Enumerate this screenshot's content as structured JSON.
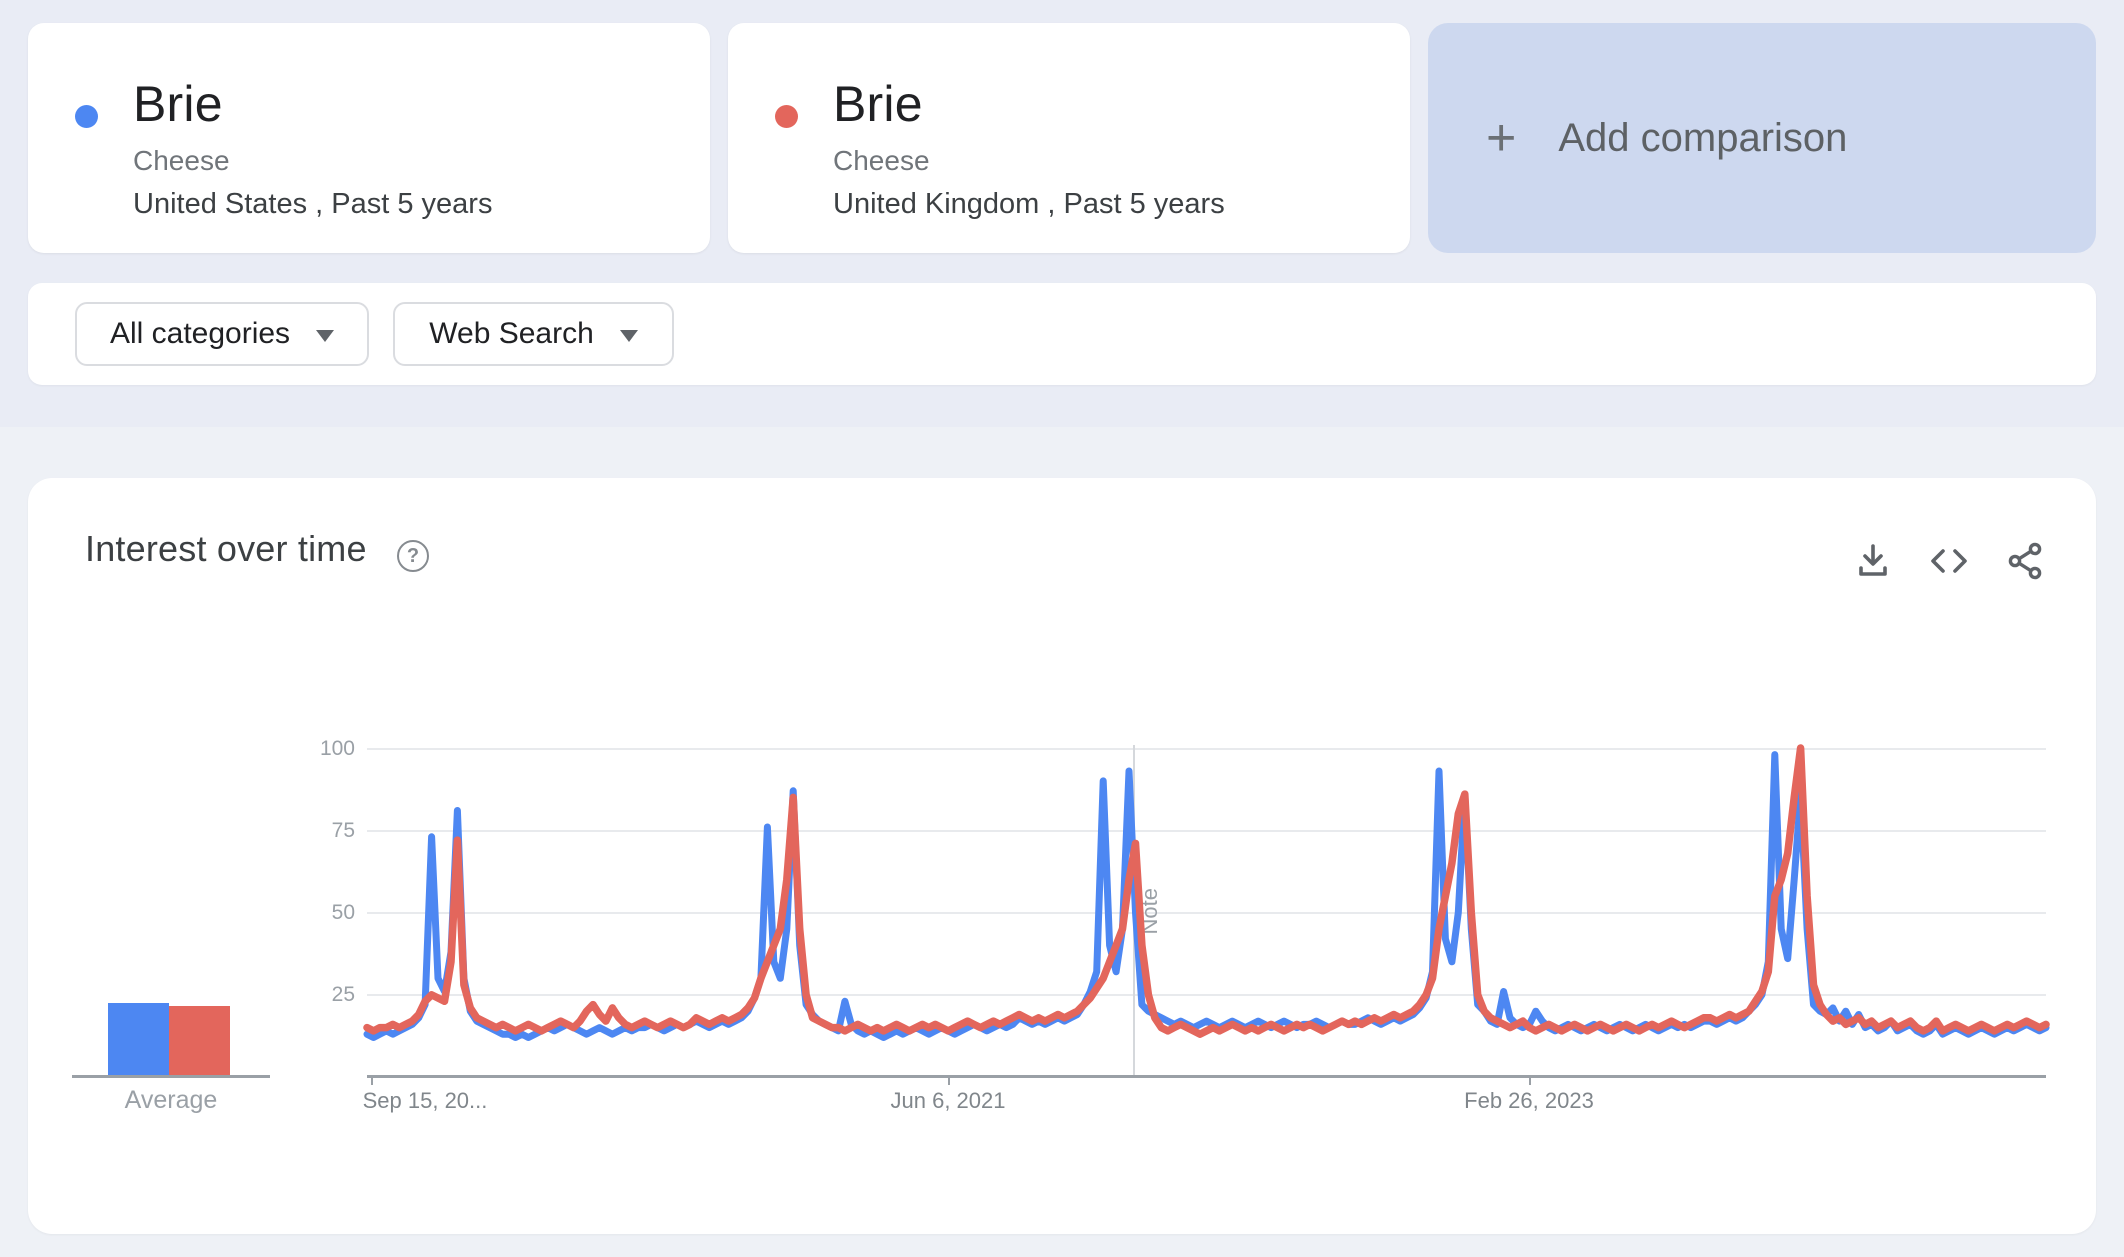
{
  "page": {
    "bg_top": "#e9ecf5",
    "bg_bottom": "#eef1f6"
  },
  "comparison_cards": [
    {
      "term": "Brie",
      "topic": "Cheese",
      "scope": "United States , Past 5 years",
      "color": "#4d87f2"
    },
    {
      "term": "Brie",
      "topic": "Cheese",
      "scope": "United Kingdom , Past 5 years",
      "color": "#e3665c"
    }
  ],
  "add_comparison": {
    "plus": "+",
    "label": "Add comparison"
  },
  "filters": {
    "category": {
      "label": "All categories"
    },
    "search_type": {
      "label": "Web Search"
    }
  },
  "panel": {
    "title": "Interest over time",
    "help": "?",
    "icons": [
      "download-icon",
      "embed-icon",
      "share-icon"
    ]
  },
  "average": {
    "label": "Average",
    "values": [
      22,
      21
    ]
  },
  "chart_data": {
    "type": "line",
    "title": "Interest over time",
    "xlabel": "",
    "ylabel": "",
    "ylim": [
      0,
      100
    ],
    "yticks": [
      25,
      50,
      75,
      100
    ],
    "grid": true,
    "legend_position": "none",
    "x_axis": {
      "points": 261,
      "unit": "week",
      "start_label": "Sep 15, 20...",
      "mid_label": "Jun 6, 2021",
      "end_label": "Feb 26, 2023",
      "note_label": "Note",
      "note_index": 119
    },
    "series": [
      {
        "name": "Brie (United States)",
        "color": "#4d87f2",
        "average": 22,
        "values": [
          13,
          12,
          13,
          14,
          13,
          14,
          15,
          16,
          18,
          22,
          73,
          30,
          26,
          38,
          81,
          30,
          20,
          17,
          16,
          15,
          14,
          13,
          13,
          12,
          13,
          12,
          13,
          14,
          15,
          14,
          15,
          16,
          15,
          14,
          13,
          14,
          15,
          14,
          13,
          14,
          15,
          14,
          15,
          15,
          16,
          15,
          14,
          15,
          16,
          15,
          16,
          17,
          16,
          15,
          16,
          17,
          16,
          17,
          18,
          20,
          24,
          30,
          76,
          35,
          30,
          45,
          87,
          40,
          22,
          19,
          17,
          16,
          15,
          14,
          23,
          16,
          14,
          13,
          14,
          13,
          12,
          13,
          14,
          13,
          14,
          15,
          14,
          13,
          14,
          15,
          14,
          13,
          14,
          15,
          16,
          15,
          14,
          15,
          16,
          15,
          16,
          18,
          17,
          16,
          17,
          16,
          17,
          18,
          17,
          18,
          19,
          22,
          26,
          32,
          90,
          40,
          32,
          45,
          93,
          50,
          22,
          20,
          19,
          18,
          17,
          16,
          17,
          16,
          15,
          16,
          17,
          16,
          15,
          16,
          17,
          16,
          15,
          16,
          17,
          16,
          15,
          16,
          17,
          16,
          15,
          16,
          16,
          17,
          16,
          15,
          16,
          17,
          16,
          16,
          17,
          18,
          17,
          16,
          17,
          18,
          17,
          18,
          19,
          21,
          24,
          32,
          93,
          42,
          35,
          50,
          86,
          45,
          22,
          20,
          17,
          16,
          26,
          18,
          16,
          15,
          16,
          20,
          17,
          15,
          14,
          15,
          16,
          15,
          14,
          15,
          16,
          15,
          14,
          15,
          16,
          15,
          14,
          15,
          16,
          15,
          14,
          15,
          16,
          15,
          16,
          15,
          16,
          17,
          17,
          16,
          17,
          18,
          17,
          18,
          20,
          22,
          25,
          35,
          98,
          45,
          36,
          60,
          86,
          45,
          22,
          20,
          19,
          21,
          17,
          20,
          16,
          19,
          15,
          16,
          14,
          15,
          17,
          14,
          15,
          16,
          14,
          13,
          14,
          16,
          13,
          14,
          15,
          14,
          13,
          14,
          15,
          14,
          13,
          14,
          15,
          14,
          15,
          16,
          15,
          14,
          15
        ]
      },
      {
        "name": "Brie (United Kingdom)",
        "color": "#e3665c",
        "average": 21,
        "values": [
          15,
          14,
          15,
          15,
          16,
          15,
          16,
          17,
          19,
          23,
          25,
          24,
          23,
          35,
          72,
          28,
          21,
          18,
          17,
          16,
          15,
          16,
          15,
          14,
          15,
          16,
          15,
          14,
          15,
          16,
          17,
          16,
          15,
          17,
          20,
          22,
          19,
          17,
          21,
          18,
          16,
          15,
          16,
          17,
          16,
          15,
          16,
          17,
          16,
          15,
          16,
          18,
          17,
          16,
          17,
          18,
          17,
          18,
          19,
          21,
          24,
          30,
          35,
          40,
          45,
          60,
          85,
          45,
          25,
          18,
          17,
          16,
          15,
          15,
          14,
          15,
          16,
          15,
          14,
          15,
          14,
          15,
          16,
          15,
          14,
          15,
          16,
          15,
          16,
          15,
          14,
          15,
          16,
          17,
          16,
          15,
          16,
          17,
          16,
          17,
          18,
          19,
          18,
          17,
          18,
          17,
          18,
          19,
          18,
          19,
          20,
          22,
          24,
          27,
          30,
          35,
          40,
          45,
          60,
          71,
          40,
          25,
          18,
          15,
          14,
          15,
          16,
          15,
          14,
          13,
          14,
          15,
          14,
          15,
          16,
          15,
          14,
          15,
          14,
          15,
          16,
          15,
          14,
          15,
          16,
          15,
          16,
          15,
          14,
          15,
          16,
          17,
          16,
          17,
          16,
          17,
          18,
          17,
          18,
          19,
          18,
          19,
          20,
          22,
          25,
          30,
          45,
          55,
          65,
          80,
          86,
          50,
          25,
          20,
          18,
          17,
          16,
          15,
          16,
          17,
          15,
          14,
          15,
          16,
          15,
          14,
          15,
          16,
          15,
          14,
          15,
          16,
          15,
          14,
          15,
          16,
          15,
          14,
          15,
          16,
          15,
          16,
          17,
          16,
          15,
          16,
          17,
          18,
          18,
          17,
          18,
          19,
          18,
          19,
          20,
          23,
          26,
          32,
          55,
          60,
          68,
          85,
          100,
          55,
          28,
          22,
          19,
          17,
          18,
          16,
          17,
          18,
          16,
          17,
          15,
          16,
          17,
          15,
          16,
          17,
          15,
          14,
          15,
          17,
          14,
          15,
          16,
          15,
          14,
          15,
          16,
          15,
          14,
          15,
          16,
          15,
          16,
          17,
          16,
          15,
          16
        ]
      }
    ]
  }
}
